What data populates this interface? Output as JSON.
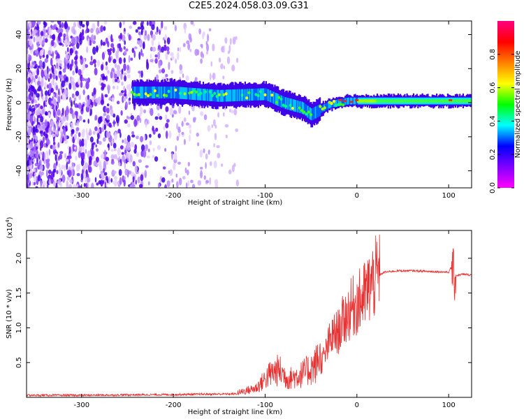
{
  "title": "C2E5.2024.058.03.09.G31",
  "chart_data": [
    {
      "type": "heatmap",
      "xlabel": "Height of straight line (km)",
      "ylabel": "Frequency (Hz)",
      "xlim": [
        -360,
        125
      ],
      "ylim": [
        -50,
        48
      ],
      "x_ticks": [
        -300,
        -200,
        -100,
        0,
        100
      ],
      "y_ticks": [
        -40,
        -20,
        0,
        20,
        40
      ],
      "colorbar": {
        "label": "Normalized spectral amplitude",
        "range": [
          0.0,
          1.0
        ],
        "ticks": [
          0.0,
          0.2,
          0.4,
          0.6,
          0.8
        ],
        "tick_labels": [
          "0.0",
          "0.2",
          "0.4",
          "0.6",
          "0.8"
        ],
        "colors": [
          "#ff00ff",
          "#8000ff",
          "#0000ff",
          "#00ffff",
          "#00ff00",
          "#ffff00",
          "#ff8000",
          "#ff0000",
          "#ff0080"
        ]
      },
      "signal_track": {
        "x": [
          -245,
          -200,
          -150,
          -100,
          -80,
          -60,
          -50,
          -40,
          -30,
          -20,
          -10,
          0,
          20,
          60,
          100,
          125
        ],
        "frequency": [
          6,
          6,
          4,
          5,
          0,
          -3,
          -7,
          -4,
          -1,
          0,
          1,
          1,
          1,
          1,
          1,
          1
        ]
      }
    },
    {
      "type": "line",
      "xlabel": "Height of straight line (km)",
      "ylabel": "SNR (10 * v/v)",
      "scale_label": "(x10",
      "scale_exp": "4",
      "scale_close": ")",
      "xlim": [
        -360,
        125
      ],
      "ylim": [
        0,
        2.4
      ],
      "x_ticks": [
        -300,
        -200,
        -100,
        0,
        100
      ],
      "y_ticks": [
        0.5,
        1.0,
        1.5,
        2.0
      ],
      "y_tick_labels": [
        "0.5",
        "1.0",
        "1.5",
        "2.0"
      ],
      "line_color": "#e83030",
      "series": [
        {
          "x": [
            -360,
            -300,
            -200,
            -130,
            -110,
            -95,
            -85,
            -75,
            -60,
            -45,
            -35,
            -30,
            -25,
            -20,
            -15,
            -10,
            -5,
            0,
            5,
            10,
            20,
            30,
            45,
            60,
            80,
            100,
            104,
            106,
            108,
            115,
            125
          ],
          "y": [
            0.03,
            0.03,
            0.04,
            0.05,
            0.1,
            0.25,
            0.3,
            0.2,
            0.25,
            0.35,
            0.6,
            0.8,
            0.9,
            0.95,
            1.1,
            1.2,
            1.3,
            1.35,
            1.4,
            1.5,
            1.72,
            1.8,
            1.82,
            1.82,
            1.81,
            1.8,
            1.9,
            1.7,
            1.75,
            1.77,
            1.76
          ]
        }
      ]
    }
  ]
}
